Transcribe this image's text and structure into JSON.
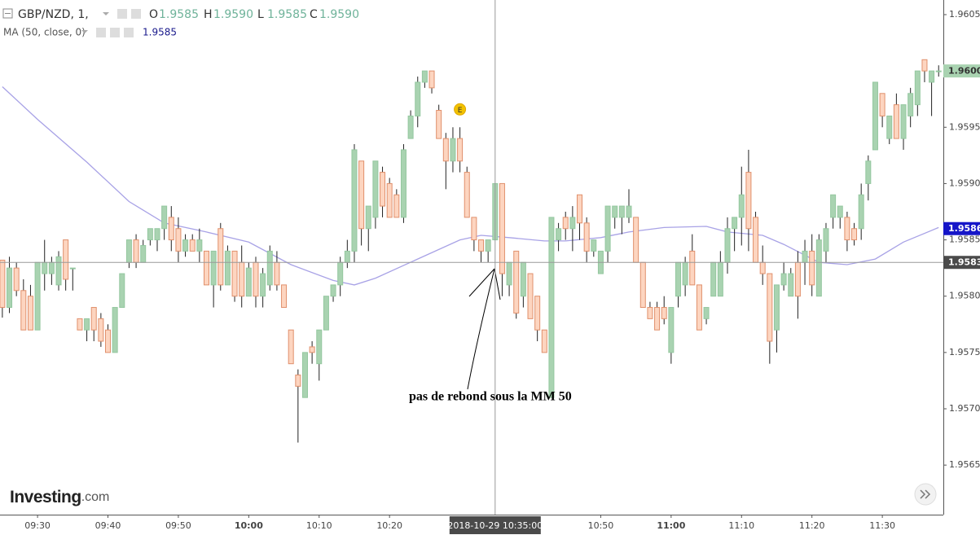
{
  "chart_data": {
    "type": "candlestick",
    "header": {
      "symbol": "GBP/NZD, 1,",
      "ohlc": [
        {
          "key": "O",
          "value": "1.9585"
        },
        {
          "key": "H",
          "value": "1.9590"
        },
        {
          "key": "L",
          "value": "1.9585"
        },
        {
          "key": "C",
          "value": "1.9590"
        }
      ]
    },
    "ma_legend": {
      "name": "MA (50, close, 0)",
      "value": "1.9585"
    },
    "x": [
      "09:25",
      "09:26",
      "09:27",
      "09:28",
      "09:29",
      "09:30",
      "09:31",
      "09:32",
      "09:33",
      "09:34",
      "09:35",
      "09:36",
      "09:37",
      "09:38",
      "09:39",
      "09:40",
      "09:41",
      "09:42",
      "09:43",
      "09:44",
      "09:45",
      "09:46",
      "09:47",
      "09:48",
      "09:49",
      "09:50",
      "09:51",
      "09:52",
      "09:53",
      "09:54",
      "09:55",
      "09:56",
      "09:57",
      "09:58",
      "09:59",
      "10:00",
      "10:01",
      "10:02",
      "10:03",
      "10:04",
      "10:05",
      "10:06",
      "10:07",
      "10:08",
      "10:09",
      "10:10",
      "10:11",
      "10:12",
      "10:13",
      "10:14",
      "10:15",
      "10:16",
      "10:17",
      "10:18",
      "10:19",
      "10:20",
      "10:21",
      "10:22",
      "10:23",
      "10:24",
      "10:25",
      "10:26",
      "10:27",
      "10:28",
      "10:29",
      "10:30",
      "10:31",
      "10:32",
      "10:33",
      "10:34",
      "10:35",
      "10:36",
      "10:37",
      "10:38",
      "10:39",
      "10:40",
      "10:41",
      "10:42",
      "10:43",
      "10:44",
      "10:45",
      "10:46",
      "10:47",
      "10:48",
      "10:49",
      "10:50",
      "10:51",
      "10:52",
      "10:53",
      "10:54",
      "10:55",
      "10:56",
      "10:57",
      "10:58",
      "10:59",
      "11:00",
      "11:01",
      "11:02",
      "11:03",
      "11:04",
      "11:05",
      "11:06",
      "11:07",
      "11:08",
      "11:09",
      "11:10",
      "11:11",
      "11:12",
      "11:13",
      "11:14",
      "11:15",
      "11:16",
      "11:17",
      "11:18",
      "11:19",
      "11:20",
      "11:21",
      "11:22",
      "11:23",
      "11:24",
      "11:25",
      "11:26",
      "11:27",
      "11:28",
      "11:29",
      "11:30",
      "11:31",
      "11:32",
      "11:33",
      "11:34",
      "11:35",
      "11:36",
      "11:37",
      "11:38"
    ],
    "open": [
      1.95832,
      1.9579,
      1.95825,
      1.95805,
      1.958,
      1.9577,
      1.9582,
      1.9582,
      1.9581,
      1.9585,
      1.95825,
      1.9578,
      1.9577,
      1.9579,
      1.9578,
      1.9577,
      1.9575,
      1.9579,
      1.9583,
      1.9585,
      1.9583,
      1.9585,
      1.9585,
      1.9586,
      1.9587,
      1.9586,
      1.9584,
      1.9585,
      1.9584,
      1.9584,
      1.9581,
      1.9586,
      1.9581,
      1.9584,
      1.9583,
      1.958,
      1.9583,
      1.958,
      1.9581,
      1.9583,
      1.9581,
      1.9577,
      1.9573,
      1.9571,
      1.95755,
      1.9574,
      1.9577,
      1.958,
      1.9581,
      1.9583,
      1.9584,
      1.9592,
      1.9586,
      1.9587,
      1.9591,
      1.959,
      1.9589,
      1.9587,
      1.9594,
      1.9596,
      1.9599,
      1.96,
      1.95965,
      1.9594,
      1.9592,
      1.9594,
      1.9591,
      1.9587,
      1.9585,
      1.9584,
      1.9585,
      1.959,
      1.9581,
      1.9584,
      1.958,
      1.9582,
      1.958,
      1.9577,
      1.9571,
      1.9585,
      1.9587,
      1.9586,
      1.9589,
      1.95865,
      1.9584,
      1.9582,
      1.9584,
      1.9587,
      1.9587,
      1.9587,
      1.9587,
      1.9583,
      1.9579,
      1.9579,
      1.9579,
      1.9575,
      1.958,
      1.9581,
      1.9584,
      1.9581,
      1.9578,
      1.958,
      1.958,
      1.9583,
      1.9586,
      1.9587,
      1.9591,
      1.9587,
      1.9583,
      1.9582,
      1.9577,
      1.9581,
      1.958,
      1.9583,
      1.9583,
      1.9584,
      1.958,
      1.9584,
      1.9587,
      1.9587,
      1.9587,
      1.9586,
      1.9586,
      1.959,
      1.9593,
      1.9598,
      1.9594,
      1.9597,
      1.9594,
      1.9596,
      1.9597,
      1.9601,
      1.9599,
      1.96
    ],
    "high": [
      1.95832,
      1.95835,
      1.9583,
      1.95815,
      1.9581,
      1.9583,
      1.9585,
      1.95835,
      1.9584,
      1.9585,
      1.95825,
      1.9578,
      1.9578,
      1.9579,
      1.95785,
      1.95775,
      1.9579,
      1.9582,
      1.9585,
      1.95855,
      1.9585,
      1.9586,
      1.9586,
      1.9588,
      1.9588,
      1.9587,
      1.95855,
      1.95855,
      1.9586,
      1.9584,
      1.9584,
      1.95865,
      1.95845,
      1.9584,
      1.95845,
      1.9583,
      1.95835,
      1.95825,
      1.95845,
      1.9584,
      1.9581,
      1.9577,
      1.95735,
      1.9575,
      1.9576,
      1.9577,
      1.958,
      1.9581,
      1.95835,
      1.9585,
      1.95935,
      1.9592,
      1.9588,
      1.9592,
      1.95915,
      1.95905,
      1.95895,
      1.95935,
      1.95965,
      1.95995,
      1.96,
      1.96,
      1.9597,
      1.95945,
      1.9595,
      1.9595,
      1.95915,
      1.9587,
      1.9585,
      1.9585,
      1.959,
      1.959,
      1.9583,
      1.9584,
      1.9583,
      1.9582,
      1.958,
      1.9577,
      1.9587,
      1.95865,
      1.95875,
      1.9588,
      1.9589,
      1.9587,
      1.9585,
      1.9584,
      1.9588,
      1.9588,
      1.9588,
      1.95895,
      1.9587,
      1.9583,
      1.95795,
      1.95795,
      1.958,
      1.9579,
      1.9583,
      1.95835,
      1.95855,
      1.9581,
      1.9579,
      1.9583,
      1.9584,
      1.9587,
      1.9587,
      1.95915,
      1.9593,
      1.95875,
      1.95845,
      1.9582,
      1.9581,
      1.9583,
      1.95825,
      1.9584,
      1.9585,
      1.95855,
      1.95855,
      1.95865,
      1.9589,
      1.9588,
      1.95875,
      1.95865,
      1.959,
      1.95925,
      1.9599,
      1.9598,
      1.9596,
      1.9598,
      1.9597,
      1.95985,
      1.96,
      1.9601,
      1.96,
      1.96005
    ],
    "low": [
      1.95781,
      1.95785,
      1.958,
      1.9577,
      1.9577,
      1.9577,
      1.95805,
      1.9581,
      1.95805,
      1.95805,
      1.95805,
      1.9577,
      1.9576,
      1.9576,
      1.95755,
      1.9575,
      1.9575,
      1.9579,
      1.95825,
      1.95825,
      1.9583,
      1.95845,
      1.9584,
      1.9585,
      1.9584,
      1.9583,
      1.95835,
      1.9584,
      1.9583,
      1.9581,
      1.9579,
      1.95805,
      1.9581,
      1.95795,
      1.9579,
      1.958,
      1.9579,
      1.9579,
      1.95805,
      1.95805,
      1.9579,
      1.9574,
      1.9567,
      1.9571,
      1.9574,
      1.95725,
      1.9577,
      1.95795,
      1.958,
      1.95825,
      1.9583,
      1.95845,
      1.9584,
      1.9586,
      1.9587,
      1.9587,
      1.9587,
      1.95865,
      1.9594,
      1.9595,
      1.95985,
      1.9598,
      1.9594,
      1.95895,
      1.9591,
      1.9591,
      1.9587,
      1.9584,
      1.9583,
      1.9583,
      1.9585,
      1.958,
      1.958,
      1.9578,
      1.9579,
      1.9578,
      1.9576,
      1.9575,
      1.9571,
      1.9584,
      1.9585,
      1.9584,
      1.9585,
      1.9583,
      1.95835,
      1.9582,
      1.9583,
      1.9586,
      1.95855,
      1.95865,
      1.9583,
      1.9579,
      1.9578,
      1.9577,
      1.95775,
      1.9574,
      1.9579,
      1.958,
      1.9581,
      1.9577,
      1.95775,
      1.958,
      1.958,
      1.9582,
      1.9584,
      1.95845,
      1.9584,
      1.9583,
      1.9581,
      1.9574,
      1.9575,
      1.95805,
      1.958,
      1.9578,
      1.9581,
      1.958,
      1.958,
      1.9583,
      1.9586,
      1.9586,
      1.9584,
      1.95845,
      1.9585,
      1.95885,
      1.9593,
      1.9595,
      1.95935,
      1.9594,
      1.9593,
      1.9595,
      1.9596,
      1.9599,
      1.9596,
      1.95995
    ],
    "close": [
      1.9579,
      1.95825,
      1.95805,
      1.9577,
      1.9577,
      1.9583,
      1.9583,
      1.9583,
      1.95835,
      1.95815,
      1.95825,
      1.9577,
      1.9578,
      1.9577,
      1.9576,
      1.9575,
      1.9579,
      1.9582,
      1.9585,
      1.9583,
      1.95845,
      1.9586,
      1.9586,
      1.9588,
      1.9585,
      1.9584,
      1.9585,
      1.9584,
      1.9585,
      1.9581,
      1.9584,
      1.9581,
      1.9584,
      1.958,
      1.958,
      1.95825,
      1.958,
      1.9582,
      1.9584,
      1.9581,
      1.9579,
      1.9574,
      1.9572,
      1.9575,
      1.9575,
      1.9577,
      1.958,
      1.9581,
      1.9583,
      1.9584,
      1.9593,
      1.9586,
      1.9588,
      1.9592,
      1.9588,
      1.9587,
      1.9587,
      1.9593,
      1.9596,
      1.9599,
      1.96,
      1.95985,
      1.9594,
      1.9592,
      1.9594,
      1.9592,
      1.9587,
      1.9585,
      1.9584,
      1.9585,
      1.959,
      1.9582,
      1.9583,
      1.95785,
      1.9583,
      1.9578,
      1.9577,
      1.9575,
      1.9587,
      1.9586,
      1.9586,
      1.9587,
      1.95865,
      1.9584,
      1.9585,
      1.9584,
      1.9588,
      1.9588,
      1.9588,
      1.9588,
      1.9583,
      1.9579,
      1.9578,
      1.9577,
      1.9578,
      1.9579,
      1.9583,
      1.9583,
      1.9581,
      1.9577,
      1.9579,
      1.9583,
      1.9583,
      1.9586,
      1.9587,
      1.9589,
      1.9586,
      1.9583,
      1.9582,
      1.9576,
      1.9581,
      1.9582,
      1.9582,
      1.958,
      1.9584,
      1.9581,
      1.9585,
      1.9586,
      1.9589,
      1.9588,
      1.9585,
      1.9585,
      1.9589,
      1.9592,
      1.9599,
      1.9596,
      1.9596,
      1.9594,
      1.9597,
      1.9598,
      1.96,
      1.96,
      1.96,
      1.96
    ],
    "up_color": "#a9d3b1",
    "up_border": "#94c79f",
    "down_color": "#fdd5c0",
    "down_border": "#e0906c",
    "wick_color": "#222222",
    "ma": {
      "color": "#a8a2e6",
      "x": [
        "09:25",
        "09:30",
        "09:37",
        "09:43",
        "09:48",
        "09:54",
        "10:00",
        "10:06",
        "10:12",
        "10:15",
        "10:18",
        "10:24",
        "10:30",
        "10:33",
        "10:37",
        "10:42",
        "10:45",
        "10:50",
        "10:54",
        "10:59",
        "11:05",
        "11:08",
        "11:13",
        "11:16",
        "11:21",
        "11:25",
        "11:29",
        "11:33",
        "11:38"
      ],
      "values": [
        1.95986,
        1.95957,
        1.95919,
        1.95884,
        1.95865,
        1.95857,
        1.95848,
        1.95828,
        1.95814,
        1.9581,
        1.95816,
        1.95833,
        1.9585,
        1.95854,
        1.95852,
        1.95849,
        1.95849,
        1.95852,
        1.95857,
        1.95861,
        1.95862,
        1.95857,
        1.95854,
        1.95846,
        1.9583,
        1.95828,
        1.95833,
        1.95848,
        1.95861
      ]
    },
    "xlim": [
      "09:24:40",
      "11:38:40"
    ],
    "xticks": [
      "09:30",
      "09:40",
      "09:50",
      "10:00",
      "10:10",
      "10:20",
      "10:50",
      "11:00",
      "11:10",
      "11:20",
      "11:30"
    ],
    "ylim": [
      1.95606,
      1.96063
    ],
    "yticks": [
      1.9565,
      {
        "value": 1.957,
        "label": "1.9570"
      },
      1.9575,
      {
        "value": 1.958,
        "label": "1.9580"
      },
      1.9585,
      {
        "value": 1.959,
        "label": "1.9590"
      },
      1.9595,
      {
        "value": 1.96,
        "label": "1.9600"
      },
      1.9605
    ],
    "price_tags": [
      {
        "value": 1.96,
        "label": "1.9600",
        "color": "#a9d3b1",
        "text_color": "#333333"
      },
      {
        "value": 1.9586,
        "label": "1.9586",
        "color": "#1515c8",
        "text_color": "#ffffff"
      },
      {
        "value": 1.9583,
        "label": "1.9583",
        "color": "#4a4a4a",
        "text_color": "#ffffff"
      }
    ],
    "crosshair": {
      "x": "10:35",
      "y": 1.9583,
      "time_label": "2018-10-29 10:35:00"
    },
    "events": [
      {
        "x": "10:30",
        "label": "E"
      }
    ],
    "annotation": "pas de rebond sous la MM 50",
    "logo": {
      "brand": "Investing",
      "suffix": ".com"
    }
  }
}
